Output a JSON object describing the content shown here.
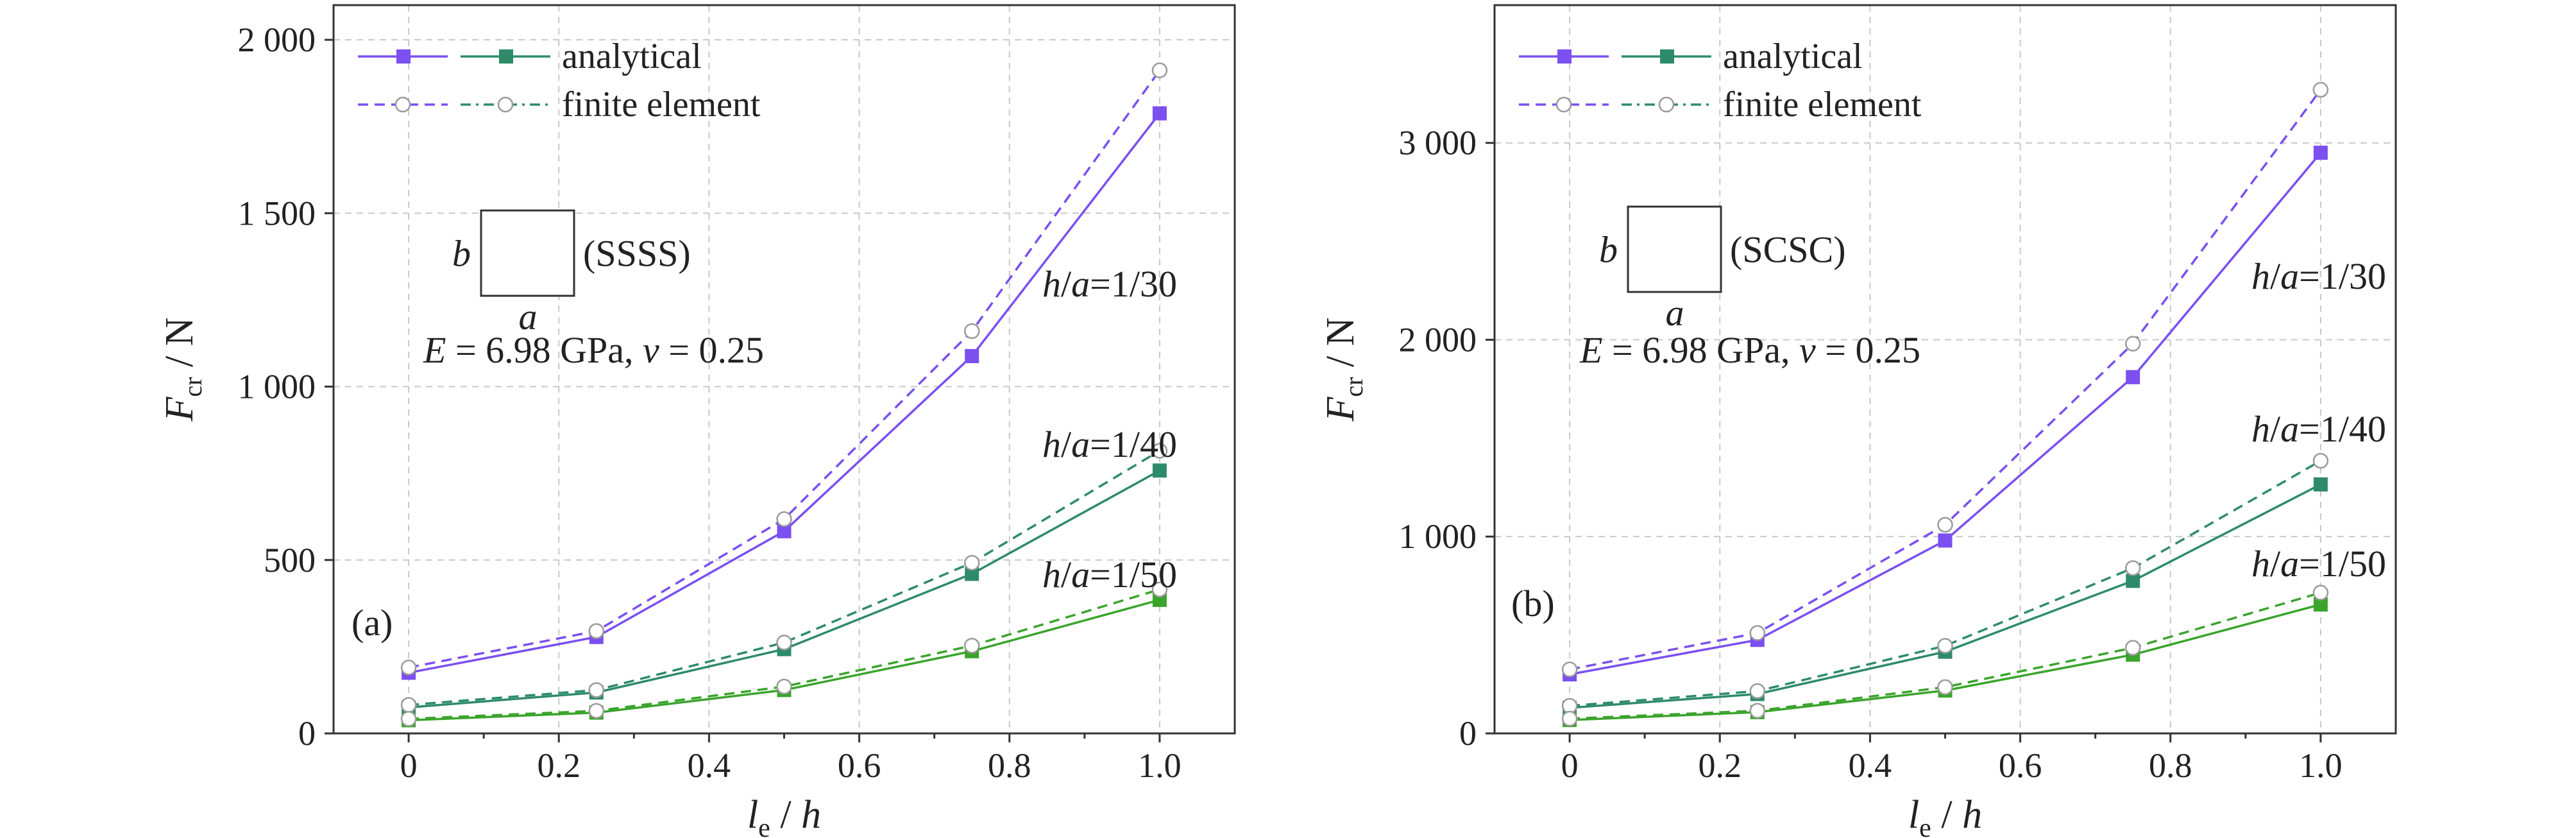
{
  "chart_data": [
    {
      "type": "line",
      "panel_label": "(a)",
      "boundary_label": "(SSSS)",
      "material_label": "E = 6.98 GPa, ν = 0.25",
      "plate_side_labels": {
        "a": "a",
        "b": "b"
      },
      "xlabel": "l_e / h",
      "ylabel": "F_cr / N",
      "xlim": [
        -0.1,
        1.1
      ],
      "ylim": [
        0,
        2100
      ],
      "x_ticks": [
        0,
        0.2,
        0.4,
        0.6,
        0.8,
        1.0
      ],
      "x_tick_labels": [
        "0",
        "0.2",
        "0.4",
        "0.6",
        "0.8",
        "1.0"
      ],
      "y_ticks": [
        0,
        500,
        1000,
        1500,
        2000
      ],
      "y_tick_labels": [
        "0",
        "500",
        "1 000",
        "1 500",
        "2 000"
      ],
      "grid": true,
      "x": [
        0,
        0.25,
        0.5,
        0.75,
        1.0
      ],
      "legend": [
        {
          "label": "analytical",
          "style": "solid-square"
        },
        {
          "label": "finite element",
          "style": "dashed-circle"
        }
      ],
      "series": [
        {
          "case": "h/a=1/30",
          "method": "analytical",
          "color": "#7b4ff0",
          "values": [
            175,
            278,
            583,
            1088,
            1788
          ]
        },
        {
          "case": "h/a=1/30",
          "method": "finite element",
          "color": "#7b4ff0",
          "values": [
            190,
            295,
            618,
            1160,
            1912
          ]
        },
        {
          "case": "h/a=1/40",
          "method": "analytical",
          "color": "#2e8b6a",
          "values": [
            75,
            118,
            243,
            460,
            758
          ]
        },
        {
          "case": "h/a=1/40",
          "method": "finite element",
          "color": "#2e8b6a",
          "values": [
            82,
            125,
            262,
            492,
            815
          ]
        },
        {
          "case": "h/a=1/50",
          "method": "analytical",
          "color": "#3aa42c",
          "values": [
            38,
            60,
            125,
            237,
            385
          ]
        },
        {
          "case": "h/a=1/50",
          "method": "finite element",
          "color": "#3aa42c",
          "values": [
            42,
            65,
            135,
            253,
            415
          ]
        }
      ],
      "curve_labels": [
        "h/a=1/30",
        "h/a=1/40",
        "h/a=1/50"
      ]
    },
    {
      "type": "line",
      "panel_label": "(b)",
      "boundary_label": "(SCSC)",
      "material_label": "E = 6.98 GPa, ν = 0.25",
      "plate_side_labels": {
        "a": "a",
        "b": "b"
      },
      "xlabel": "l_e / h",
      "ylabel": "F_cr / N",
      "xlim": [
        -0.1,
        1.1
      ],
      "ylim": [
        0,
        3700
      ],
      "x_ticks": [
        0,
        0.2,
        0.4,
        0.6,
        0.8,
        1.0
      ],
      "x_tick_labels": [
        "0",
        "0.2",
        "0.4",
        "0.6",
        "0.8",
        "1.0"
      ],
      "y_ticks": [
        0,
        1000,
        2000,
        3000
      ],
      "y_tick_labels": [
        "0",
        "1 000",
        "2 000",
        "3 000"
      ],
      "grid": true,
      "x": [
        0,
        0.25,
        0.5,
        0.75,
        1.0
      ],
      "legend": [
        {
          "label": "analytical",
          "style": "solid-square"
        },
        {
          "label": "finite element",
          "style": "dashed-circle"
        }
      ],
      "series": [
        {
          "case": "h/a=1/30",
          "method": "analytical",
          "color": "#7b4ff0",
          "values": [
            300,
            475,
            980,
            1810,
            2950
          ]
        },
        {
          "case": "h/a=1/30",
          "method": "finite element",
          "color": "#7b4ff0",
          "values": [
            325,
            510,
            1060,
            1980,
            3270
          ]
        },
        {
          "case": "h/a=1/40",
          "method": "analytical",
          "color": "#2e8b6a",
          "values": [
            130,
            200,
            415,
            775,
            1265
          ]
        },
        {
          "case": "h/a=1/40",
          "method": "finite element",
          "color": "#2e8b6a",
          "values": [
            140,
            215,
            445,
            840,
            1385
          ]
        },
        {
          "case": "h/a=1/50",
          "method": "analytical",
          "color": "#3aa42c",
          "values": [
            68,
            108,
            218,
            400,
            655
          ]
        },
        {
          "case": "h/a=1/50",
          "method": "finite element",
          "color": "#3aa42c",
          "values": [
            75,
            115,
            235,
            435,
            715
          ]
        }
      ],
      "curve_labels": [
        "h/a=1/30",
        "h/a=1/40",
        "h/a=1/50"
      ]
    }
  ]
}
